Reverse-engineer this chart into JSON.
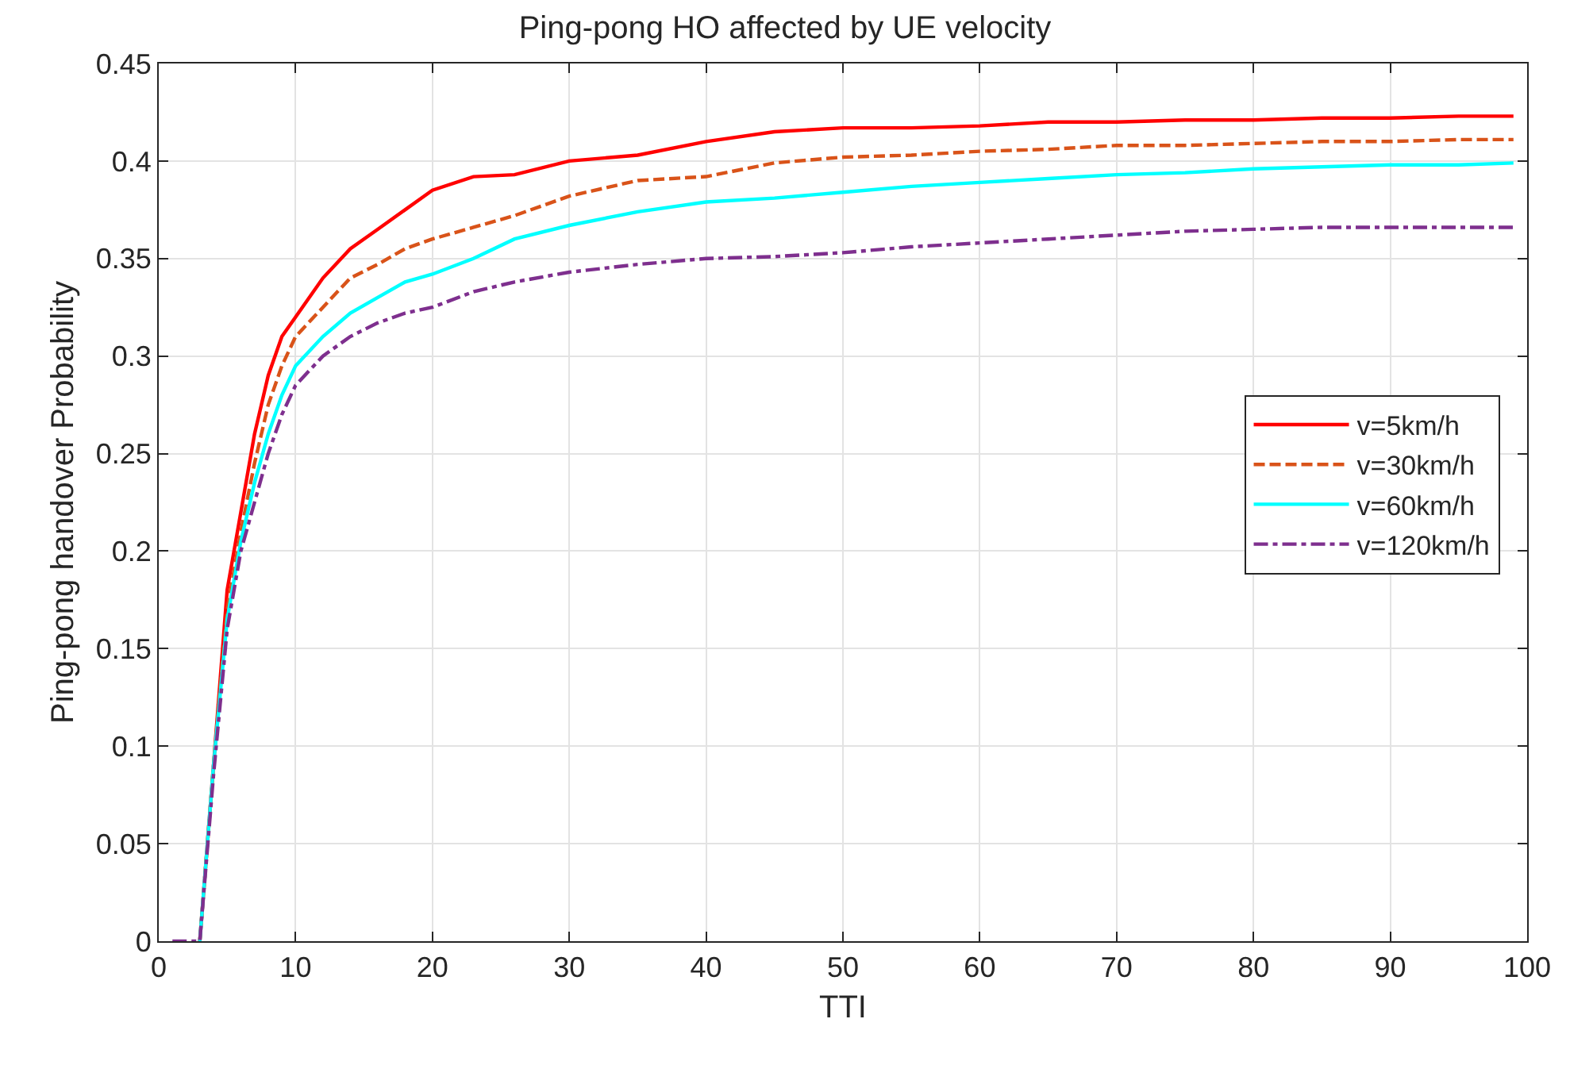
{
  "chart_data": {
    "type": "line",
    "title": "Ping-pong HO affected by UE velocity",
    "xlabel": "TTI",
    "ylabel": "Ping-pong handover Probability",
    "x": [
      1,
      2,
      3,
      4,
      5,
      6,
      7,
      8,
      9,
      10,
      12,
      14,
      16,
      18,
      20,
      23,
      26,
      30,
      35,
      40,
      45,
      50,
      55,
      60,
      65,
      70,
      75,
      80,
      85,
      90,
      95,
      99
    ],
    "series": [
      {
        "name": "v=5km/h",
        "color": "#ff0000",
        "line_style": "solid",
        "values": [
          null,
          null,
          0,
          0.09,
          0.18,
          0.22,
          0.26,
          0.29,
          0.31,
          0.32,
          0.34,
          0.355,
          0.365,
          0.375,
          0.385,
          0.392,
          0.393,
          0.4,
          0.403,
          0.41,
          0.415,
          0.417,
          0.417,
          0.418,
          0.42,
          0.42,
          0.421,
          0.421,
          0.422,
          0.422,
          0.423,
          0.423
        ]
      },
      {
        "name": "v=30km/h",
        "color": "#d95319",
        "line_style": "dashed",
        "values": [
          null,
          null,
          0,
          0.09,
          0.17,
          0.21,
          0.245,
          0.275,
          0.295,
          0.31,
          0.325,
          0.34,
          0.347,
          0.355,
          0.36,
          0.366,
          0.372,
          0.382,
          0.39,
          0.392,
          0.399,
          0.402,
          0.403,
          0.405,
          0.406,
          0.408,
          0.408,
          0.409,
          0.41,
          0.41,
          0.411,
          0.411
        ]
      },
      {
        "name": "v=60km/h",
        "color": "#00ffff",
        "line_style": "solid",
        "values": [
          null,
          null,
          0,
          0.09,
          0.165,
          0.205,
          0.235,
          0.26,
          0.28,
          0.295,
          0.31,
          0.322,
          0.33,
          0.338,
          0.342,
          0.35,
          0.36,
          0.367,
          0.374,
          0.379,
          0.381,
          0.384,
          0.387,
          0.389,
          0.391,
          0.393,
          0.394,
          0.396,
          0.397,
          0.398,
          0.398,
          0.399
        ]
      },
      {
        "name": "v=120km/h",
        "color": "#7e2f8e",
        "line_style": "dashdot",
        "values": [
          0,
          0,
          0,
          0.085,
          0.16,
          0.2,
          0.225,
          0.25,
          0.27,
          0.285,
          0.3,
          0.31,
          0.317,
          0.322,
          0.325,
          0.333,
          0.338,
          0.343,
          0.347,
          0.35,
          0.351,
          0.353,
          0.356,
          0.358,
          0.36,
          0.362,
          0.364,
          0.365,
          0.366,
          0.366,
          0.366,
          0.366
        ]
      }
    ],
    "xlim": [
      0,
      100
    ],
    "xticks": [
      0,
      10,
      20,
      30,
      40,
      50,
      60,
      70,
      80,
      90,
      100
    ],
    "ylim": [
      0,
      0.45
    ],
    "yticks": [
      0,
      0.05,
      0.1,
      0.15,
      0.2,
      0.25,
      0.3,
      0.35,
      0.4,
      0.45
    ],
    "grid": true,
    "legend": "right",
    "marker": "none"
  }
}
